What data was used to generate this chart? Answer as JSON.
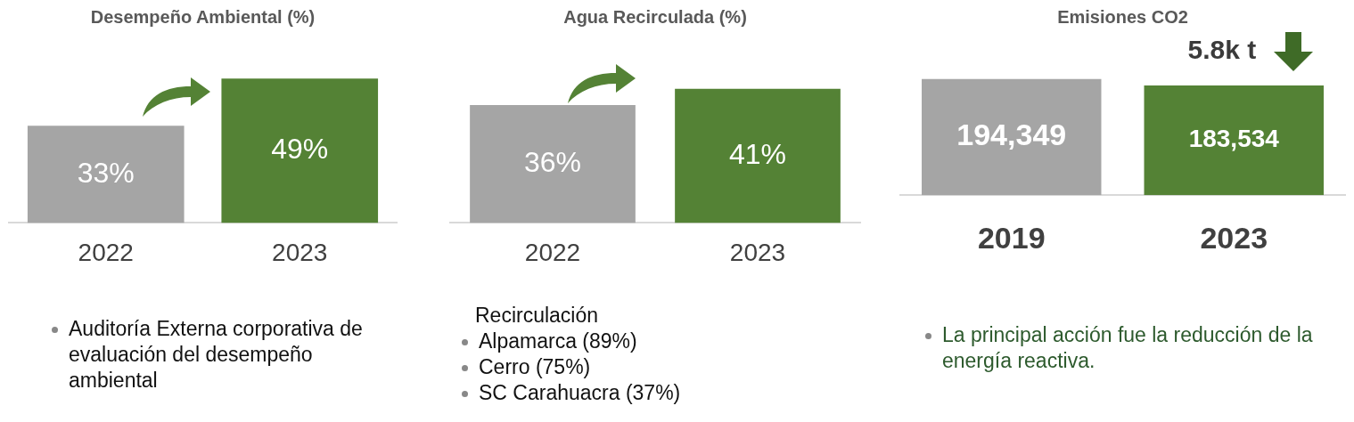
{
  "chart_data": [
    {
      "type": "bar",
      "title": "Desempeño Ambiental (%)",
      "categories": [
        "2022",
        "2023"
      ],
      "values": [
        33,
        49
      ],
      "colors": [
        "#a5a5a5",
        "#548235"
      ],
      "value_labels": [
        "33%",
        "49%"
      ],
      "annotations": [
        "Auditoría Externa corporativa de  evaluación del desempeño ambiental"
      ]
    },
    {
      "type": "bar",
      "title": "Agua Recirculada (%)",
      "categories": [
        "2022",
        "2023"
      ],
      "values": [
        36,
        41
      ],
      "colors": [
        "#a5a5a5",
        "#548235"
      ],
      "value_labels": [
        "36%",
        "41%"
      ],
      "annotations": [
        "Recirculación",
        "Alpamarca (89%)",
        "Cerro (75%)",
        "SC Carahuacra (37%)"
      ]
    },
    {
      "type": "bar",
      "title": "Emisiones CO2",
      "categories": [
        "2019",
        "2023"
      ],
      "values": [
        194349,
        183534
      ],
      "colors": [
        "#a5a5a5",
        "#548235"
      ],
      "value_labels": [
        "194,349",
        "183,534"
      ],
      "annotations": [
        "5.8k t",
        "La principal acción fue la reducción de la energía reactiva."
      ]
    }
  ]
}
